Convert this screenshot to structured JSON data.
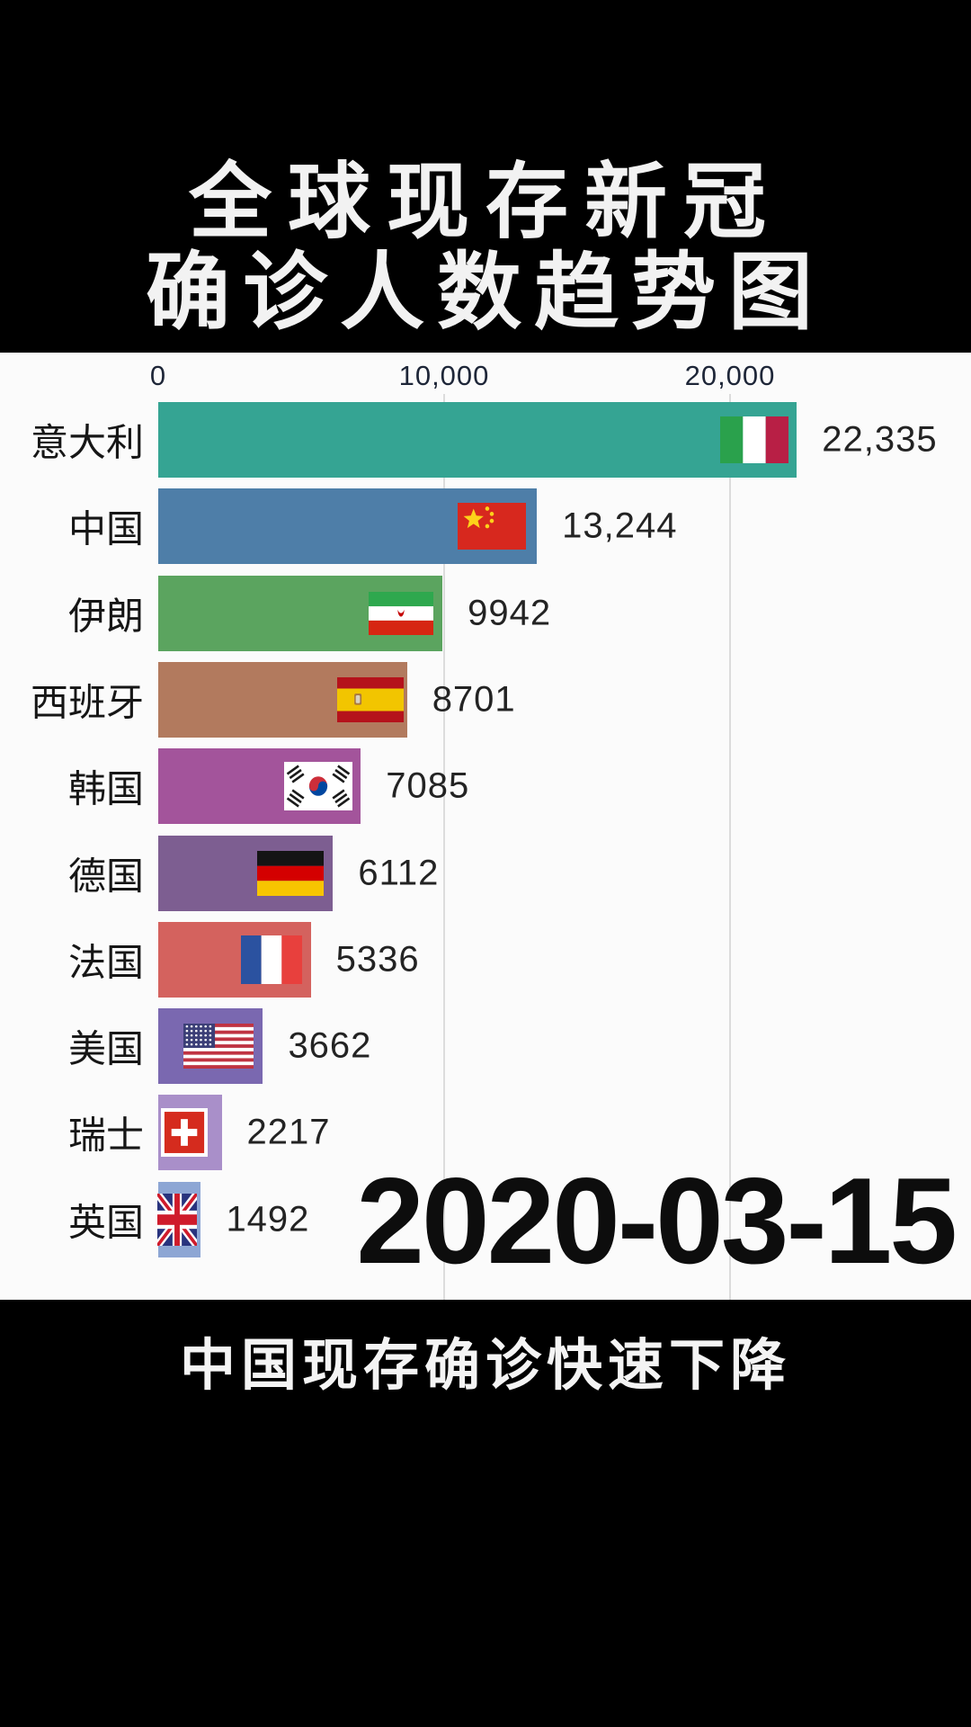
{
  "title": {
    "line1": "全球现存新冠",
    "line2": "确诊人数趋势图"
  },
  "date_label": "2020-03-15",
  "caption": "中国现存确诊快速下降",
  "chart_data": {
    "type": "bar",
    "orientation": "horizontal",
    "title": "全球现存新冠确诊人数趋势图",
    "xlabel": "",
    "ylabel": "",
    "xlim": [
      0,
      28400
    ],
    "grid": "vertical-light",
    "legend": "none",
    "x_ticks": [
      {
        "value": 0,
        "label": "0"
      },
      {
        "value": 10000,
        "label": "10,000"
      },
      {
        "value": 20000,
        "label": "20,000"
      }
    ],
    "categories": [
      "意大利",
      "中国",
      "伊朗",
      "西班牙",
      "韩国",
      "德国",
      "法国",
      "美国",
      "瑞士",
      "英国"
    ],
    "values": [
      22335,
      13244,
      9942,
      8701,
      7085,
      6112,
      5336,
      3662,
      2217,
      1492
    ],
    "rows": [
      {
        "country": "意大利",
        "value": 22335,
        "value_label": "22,335",
        "color": "#35a493",
        "flag": "italy-flag-icon",
        "flag_code": "it"
      },
      {
        "country": "中国",
        "value": 13244,
        "value_label": "13,244",
        "color": "#4e7ea8",
        "flag": "china-flag-icon",
        "flag_code": "cn"
      },
      {
        "country": "伊朗",
        "value": 9942,
        "value_label": "9942",
        "color": "#5ba45f",
        "flag": "iran-flag-icon",
        "flag_code": "ir"
      },
      {
        "country": "西班牙",
        "value": 8701,
        "value_label": "8701",
        "color": "#b27a5e",
        "flag": "spain-flag-icon",
        "flag_code": "es"
      },
      {
        "country": "韩国",
        "value": 7085,
        "value_label": "7085",
        "color": "#a3549b",
        "flag": "south-korea-flag-icon",
        "flag_code": "kr"
      },
      {
        "country": "德国",
        "value": 6112,
        "value_label": "6112",
        "color": "#7d5e91",
        "flag": "germany-flag-icon",
        "flag_code": "de"
      },
      {
        "country": "法国",
        "value": 5336,
        "value_label": "5336",
        "color": "#d4625e",
        "flag": "france-flag-icon",
        "flag_code": "fr"
      },
      {
        "country": "美国",
        "value": 3662,
        "value_label": "3662",
        "color": "#7a68b0",
        "flag": "usa-flag-icon",
        "flag_code": "us"
      },
      {
        "country": "瑞士",
        "value": 2217,
        "value_label": "2217",
        "color": "#a98fc9",
        "flag": "switzerland-flag-icon",
        "flag_code": "ch"
      },
      {
        "country": "英国",
        "value": 1492,
        "value_label": "1492",
        "color": "#8da6d4",
        "flag": "uk-flag-icon",
        "flag_code": "gb"
      }
    ]
  }
}
